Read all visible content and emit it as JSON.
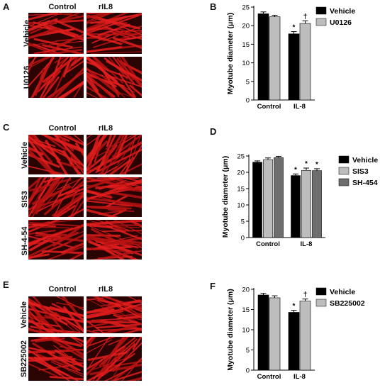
{
  "panels": {
    "A": {
      "letter": "A",
      "cols": [
        "Control",
        "rIL8"
      ],
      "rows": [
        "Vehicle",
        "U0126"
      ]
    },
    "C": {
      "letter": "C",
      "cols": [
        "Control",
        "rIL8"
      ],
      "rows": [
        "Vehicle",
        "SIS3",
        "SH-4-54"
      ]
    },
    "E": {
      "letter": "E",
      "cols": [
        "Control",
        "rIL8"
      ],
      "rows": [
        "Vehicle",
        "SB225002"
      ]
    }
  },
  "chart_letters": {
    "B": "B",
    "D": "D",
    "F": "F"
  },
  "colors": {
    "vehicle": "#000000",
    "light": "#bdbdbd",
    "dark": "#6e6e6e",
    "stain": "#e41e1e"
  },
  "chart_data": [
    {
      "type": "bar",
      "panel": "B",
      "categories": [
        "Control",
        "IL-8"
      ],
      "ylabel": "Myotube diameter (μm)",
      "ylim": [
        0,
        25
      ],
      "yticks": [
        0,
        5,
        10,
        15,
        20,
        25
      ],
      "series": [
        {
          "name": "Vehicle",
          "values": [
            23.2,
            17.8
          ],
          "errors": [
            0.5,
            0.6
          ],
          "marks": [
            "",
            "*"
          ]
        },
        {
          "name": "U0126",
          "values": [
            22.4,
            20.6
          ],
          "errors": [
            0.4,
            0.7
          ],
          "marks": [
            "",
            "†"
          ]
        }
      ],
      "legend_position": "top-right"
    },
    {
      "type": "bar",
      "panel": "D",
      "categories": [
        "Control",
        "IL-8"
      ],
      "ylabel": "Myotube diameter (μm)",
      "ylim": [
        0,
        25
      ],
      "yticks": [
        0,
        5,
        10,
        15,
        20,
        25
      ],
      "series": [
        {
          "name": "Vehicle",
          "values": [
            23.1,
            19.0
          ],
          "errors": [
            0.4,
            0.5
          ],
          "marks": [
            "",
            "*"
          ]
        },
        {
          "name": "SIS3",
          "values": [
            23.9,
            20.6
          ],
          "errors": [
            0.5,
            0.7
          ],
          "marks": [
            "",
            "*"
          ]
        },
        {
          "name": "SH-454",
          "values": [
            24.5,
            20.5
          ],
          "errors": [
            0.4,
            0.6
          ],
          "marks": [
            "",
            "*"
          ]
        }
      ],
      "legend_position": "right"
    },
    {
      "type": "bar",
      "panel": "F",
      "categories": [
        "Control",
        "IL-8"
      ],
      "ylabel": "Myotube diameter (μm)",
      "ylim": [
        0,
        20
      ],
      "yticks": [
        0,
        5,
        10,
        15,
        20
      ],
      "series": [
        {
          "name": "Vehicle",
          "values": [
            18.6,
            14.3
          ],
          "errors": [
            0.4,
            0.5
          ],
          "marks": [
            "",
            "*"
          ]
        },
        {
          "name": "SB225002",
          "values": [
            17.9,
            17.1
          ],
          "errors": [
            0.5,
            0.5
          ],
          "marks": [
            "",
            "†"
          ]
        }
      ],
      "legend_position": "top-right"
    }
  ]
}
